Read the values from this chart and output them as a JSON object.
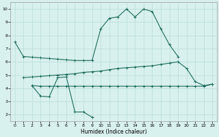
{
  "xlabel": "Humidex (Indice chaleur)",
  "xlim": [
    -0.5,
    23.5
  ],
  "ylim": [
    1.5,
    10.5
  ],
  "xticks": [
    0,
    1,
    2,
    3,
    4,
    5,
    6,
    7,
    8,
    9,
    10,
    11,
    12,
    13,
    14,
    15,
    16,
    17,
    18,
    19,
    20,
    21,
    22,
    23
  ],
  "yticks": [
    2,
    3,
    4,
    5,
    6,
    7,
    8,
    9,
    10
  ],
  "background_color": "#d8f0ee",
  "grid_color": "#b8dcd8",
  "line_color": "#1a6b5a",
  "peak_x": [
    0,
    1,
    2,
    3,
    4,
    5,
    6,
    7,
    8,
    9,
    10,
    11,
    12,
    13,
    14,
    15,
    16,
    17,
    18,
    19
  ],
  "peak_y": [
    7.5,
    6.4,
    6.35,
    6.3,
    6.25,
    6.2,
    6.15,
    6.1,
    6.1,
    6.1,
    8.5,
    9.3,
    9.4,
    10.0,
    9.4,
    10.0,
    9.8,
    8.5,
    7.3,
    6.4
  ],
  "rise_x": [
    1,
    2,
    3,
    4,
    5,
    6,
    7,
    8,
    9,
    10,
    11,
    12,
    13,
    14,
    15,
    16,
    17,
    18,
    19,
    20,
    21,
    22,
    23
  ],
  "rise_y": [
    4.8,
    4.85,
    4.9,
    4.95,
    5.0,
    5.05,
    5.1,
    5.2,
    5.25,
    5.3,
    5.4,
    5.5,
    5.55,
    5.6,
    5.65,
    5.7,
    5.8,
    5.9,
    6.0,
    5.5,
    4.5,
    4.2,
    4.3
  ],
  "flat_x": [
    2,
    3,
    4,
    5,
    6,
    7,
    8,
    9,
    10,
    11,
    12,
    13,
    14,
    15,
    16,
    17,
    18,
    19,
    20,
    21,
    22,
    23
  ],
  "flat_y": [
    4.2,
    4.15,
    4.15,
    4.15,
    4.15,
    4.15,
    4.15,
    4.15,
    4.15,
    4.15,
    4.15,
    4.15,
    4.15,
    4.15,
    4.15,
    4.15,
    4.15,
    4.15,
    4.15,
    4.15,
    4.15,
    4.3
  ],
  "dip_x": [
    2,
    3,
    4,
    5,
    6,
    7,
    8,
    9
  ],
  "dip_y": [
    4.2,
    3.4,
    3.35,
    4.8,
    4.85,
    2.2,
    2.2,
    1.8
  ]
}
